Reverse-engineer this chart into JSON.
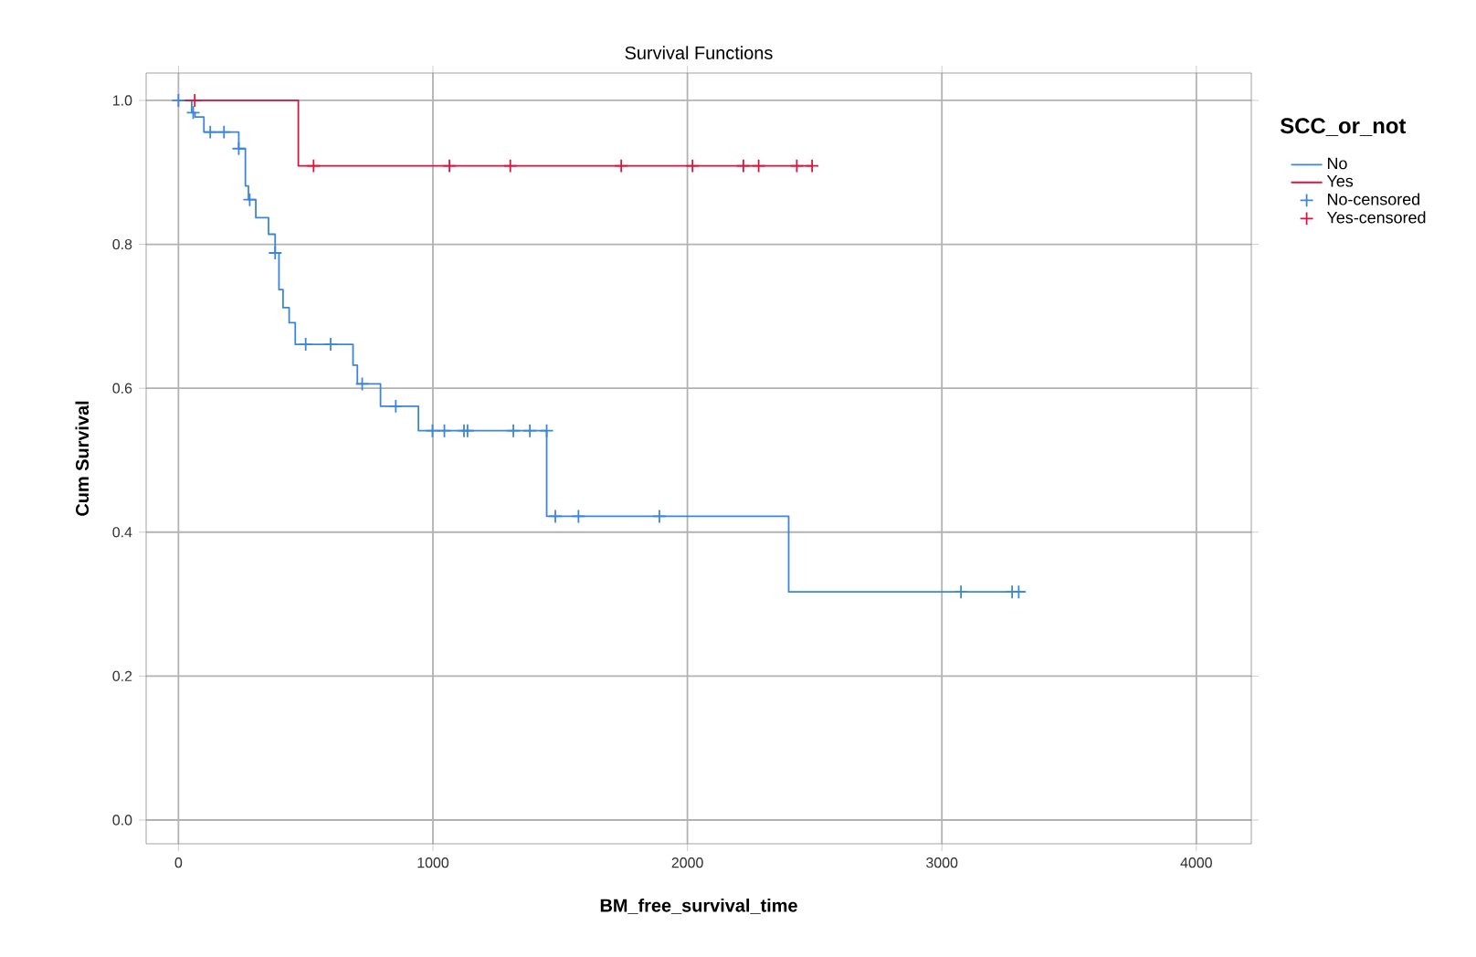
{
  "chart_data": {
    "type": "step",
    "title": "Survival Functions",
    "xlabel": "BM_free_survival_time",
    "ylabel": "Cum Survival",
    "legend_title": "SCC_or_not",
    "xlim": [
      -127,
      4216
    ],
    "ylim": [
      -0.033,
      1.038
    ],
    "xticks": [
      0,
      1000,
      2000,
      3000,
      4000
    ],
    "yticks": [
      {
        "value": 0,
        "label": "0.0"
      },
      {
        "value": 0.2,
        "label": "0.2"
      },
      {
        "value": 0.4,
        "label": "0.4"
      },
      {
        "value": 0.6,
        "label": "0.6"
      },
      {
        "value": 0.8,
        "label": "0.8"
      },
      {
        "value": 1,
        "label": "1.0"
      }
    ],
    "grid": true,
    "legend": "right",
    "series": [
      {
        "name": "No",
        "color": "#3c86d8",
        "x": [
          0,
          52,
          65,
          100,
          237,
          263,
          275,
          304,
          354,
          380,
          395,
          411,
          435,
          459,
          686,
          703,
          794,
          943,
          1447,
          2398,
          3330
        ],
        "values": [
          1.0,
          0.983,
          0.977,
          0.956,
          0.933,
          0.881,
          0.862,
          0.837,
          0.814,
          0.788,
          0.737,
          0.712,
          0.691,
          0.661,
          0.632,
          0.606,
          0.575,
          0.541,
          0.422,
          0.317,
          0.317
        ]
      },
      {
        "name": "Yes",
        "color": "#d6163f",
        "x": [
          0,
          471,
          2490
        ],
        "values": [
          1.0,
          0.909,
          0.909
        ]
      },
      {
        "name": "No-censored",
        "type": "scatter",
        "marker": "cross",
        "color": "#3c86d8",
        "x": [
          0,
          58,
          125,
          179,
          237,
          280,
          380,
          500,
          598,
          722,
          854,
          998,
          1045,
          1122,
          1136,
          1316,
          1381,
          1447,
          1481,
          1572,
          1890,
          3075,
          3276,
          3302
        ],
        "values": [
          1.0,
          0.983,
          0.956,
          0.956,
          0.933,
          0.862,
          0.788,
          0.661,
          0.661,
          0.606,
          0.575,
          0.541,
          0.541,
          0.541,
          0.541,
          0.541,
          0.541,
          0.541,
          0.422,
          0.422,
          0.422,
          0.317,
          0.317,
          0.317
        ]
      },
      {
        "name": "Yes-censored",
        "type": "scatter",
        "marker": "cross",
        "color": "#d6163f",
        "x": [
          64,
          531,
          1065,
          1304,
          1740,
          2020,
          2220,
          2280,
          2430,
          2490
        ],
        "values": [
          1.0,
          0.909,
          0.909,
          0.909,
          0.909,
          0.909,
          0.909,
          0.909,
          0.909,
          0.909
        ]
      }
    ]
  }
}
